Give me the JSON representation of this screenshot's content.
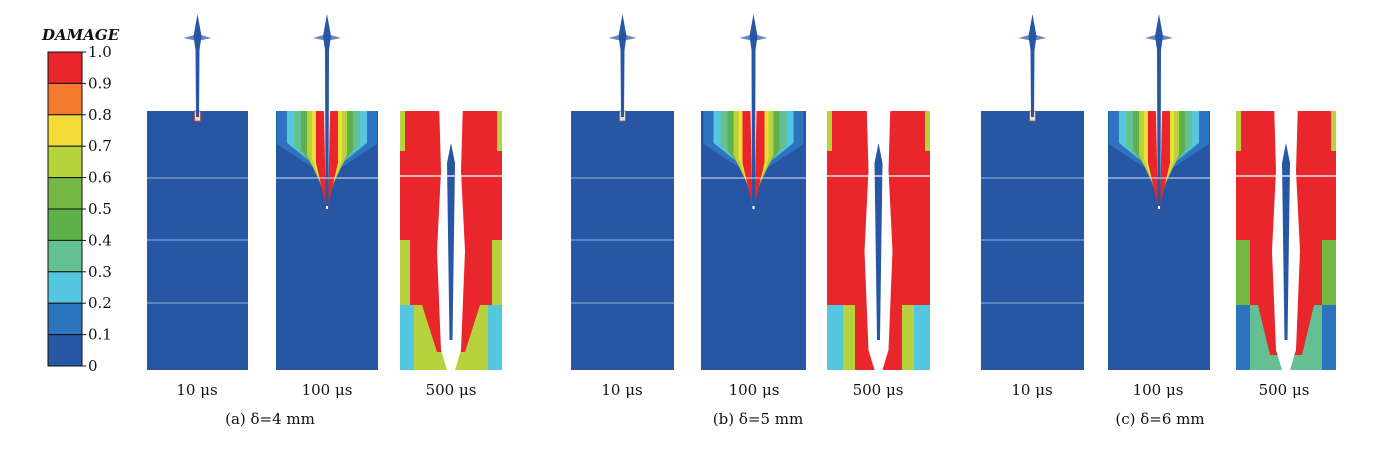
{
  "legend": {
    "title": "DAMAGE",
    "ticks": [
      "1.0",
      "0.9",
      "0.8",
      "0.7",
      "0.6",
      "0.5",
      "0.4",
      "0.3",
      "0.2",
      "0.1",
      "0"
    ],
    "colors_top_to_bottom": [
      "#e8262b",
      "#f47a31",
      "#f6dc39",
      "#b6d23c",
      "#74b943",
      "#5eb04a",
      "#64bf93",
      "#54c6dd",
      "#2c75be",
      "#2656a4"
    ]
  },
  "colors": {
    "undamaged": "#2656a4",
    "full_damage": "#e8262b",
    "crack": "#ffffff"
  },
  "groups": [
    {
      "caption": "(a) δ=4 mm",
      "panels": [
        {
          "time": "10 μs",
          "state": "initial"
        },
        {
          "time": "100 μs",
          "state": "partial"
        },
        {
          "time": "500 μs",
          "state": "full"
        }
      ]
    },
    {
      "caption": "(b) δ=5 mm",
      "panels": [
        {
          "time": "10 μs",
          "state": "initial"
        },
        {
          "time": "100 μs",
          "state": "partial"
        },
        {
          "time": "500 μs",
          "state": "full"
        }
      ]
    },
    {
      "caption": "(c) δ=6 mm",
      "panels": [
        {
          "time": "10 μs",
          "state": "initial"
        },
        {
          "time": "100 μs",
          "state": "partial"
        },
        {
          "time": "500 μs",
          "state": "full"
        }
      ]
    }
  ]
}
